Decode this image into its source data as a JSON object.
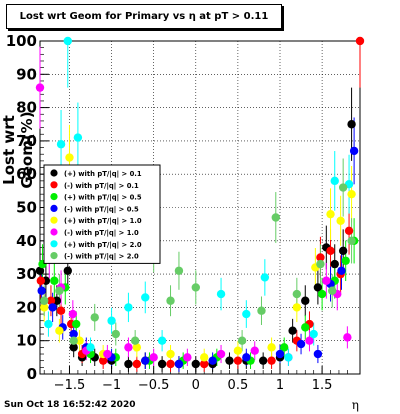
{
  "chart_data": {
    "type": "scatter",
    "title": "Lost wrt Geom for Primary vs   η at pT > 0.11",
    "xlabel": "η",
    "ylabel": "Lost wrt Geom(%)",
    "xlim": [
      -1.85,
      1.95
    ],
    "ylim": [
      0,
      100
    ],
    "x_ticks": [
      -1.5,
      -1,
      -0.5,
      0,
      0.5,
      1,
      1.5
    ],
    "x_tick_labels": [
      "−1.5",
      "−1",
      "−0.5",
      "0",
      "0.5",
      "1",
      "1.5"
    ],
    "y_ticks": [
      0,
      10,
      20,
      30,
      40,
      50,
      60,
      70,
      80,
      90,
      100
    ],
    "y_tick_labels": [
      "0",
      "10",
      "20",
      "30",
      "40",
      "50",
      "60",
      "70",
      "80",
      "90",
      "100"
    ],
    "grid": true,
    "legend_position": "middle-left",
    "series": [
      {
        "name": "(+) with pT/|q| > 0.1",
        "color": "#000000",
        "points": [
          [
            -1.85,
            31
          ],
          [
            -1.78,
            28
          ],
          [
            -1.65,
            22
          ],
          [
            -1.52,
            31
          ],
          [
            -1.45,
            8
          ],
          [
            -1.35,
            5
          ],
          [
            -1.2,
            5
          ],
          [
            -1.0,
            4
          ],
          [
            -0.8,
            3
          ],
          [
            -0.6,
            4
          ],
          [
            -0.4,
            3
          ],
          [
            -0.2,
            3
          ],
          [
            0.0,
            3
          ],
          [
            0.2,
            3
          ],
          [
            0.4,
            4
          ],
          [
            0.6,
            4
          ],
          [
            0.8,
            4
          ],
          [
            1.0,
            5
          ],
          [
            1.15,
            13
          ],
          [
            1.3,
            22
          ],
          [
            1.45,
            26
          ],
          [
            1.55,
            38
          ],
          [
            1.65,
            33
          ],
          [
            1.75,
            37
          ],
          [
            1.85,
            75
          ]
        ]
      },
      {
        "name": "(-) with pT/|q| > 0.1",
        "color": "#ff0000",
        "points": [
          [
            -1.84,
            28
          ],
          [
            -1.72,
            22
          ],
          [
            -1.6,
            19
          ],
          [
            -1.48,
            15
          ],
          [
            -1.35,
            6
          ],
          [
            -1.1,
            4
          ],
          [
            -0.7,
            3
          ],
          [
            -0.3,
            3
          ],
          [
            0.1,
            3
          ],
          [
            0.5,
            4
          ],
          [
            0.9,
            4
          ],
          [
            1.2,
            10
          ],
          [
            1.35,
            15
          ],
          [
            1.48,
            35
          ],
          [
            1.6,
            37
          ],
          [
            1.72,
            30
          ],
          [
            1.82,
            43
          ],
          [
            1.95,
            100
          ]
        ]
      },
      {
        "name": "(+) with pT/|q| > 0.5",
        "color": "#00ee00",
        "points": [
          [
            -1.82,
            33
          ],
          [
            -1.68,
            28
          ],
          [
            -1.55,
            26
          ],
          [
            -1.42,
            15
          ],
          [
            -1.25,
            6
          ],
          [
            -0.95,
            5
          ],
          [
            -0.55,
            4
          ],
          [
            -0.15,
            4
          ],
          [
            0.25,
            5
          ],
          [
            0.65,
            4
          ],
          [
            1.05,
            8
          ],
          [
            1.3,
            14
          ],
          [
            1.5,
            24
          ],
          [
            1.65,
            28
          ],
          [
            1.78,
            34
          ],
          [
            1.88,
            40
          ]
        ]
      },
      {
        "name": "(-) with pT/|q| > 0.5",
        "color": "#0000ff",
        "points": [
          [
            -1.83,
            25
          ],
          [
            -1.7,
            20
          ],
          [
            -1.58,
            14
          ],
          [
            -1.45,
            12
          ],
          [
            -1.3,
            8
          ],
          [
            -1.0,
            5
          ],
          [
            -0.6,
            4
          ],
          [
            -0.2,
            3
          ],
          [
            0.2,
            4
          ],
          [
            0.6,
            5
          ],
          [
            1.0,
            6
          ],
          [
            1.25,
            9
          ],
          [
            1.45,
            6
          ],
          [
            1.6,
            27
          ],
          [
            1.73,
            31
          ],
          [
            1.88,
            67
          ]
        ]
      },
      {
        "name": "(+) with pT/|q| > 1.0",
        "color": "#ffff00",
        "points": [
          [
            -1.8,
            20
          ],
          [
            -1.62,
            13
          ],
          [
            -1.5,
            65
          ],
          [
            -1.38,
            10
          ],
          [
            -1.1,
            6
          ],
          [
            -0.7,
            8
          ],
          [
            -0.3,
            6
          ],
          [
            0.1,
            5
          ],
          [
            0.5,
            7
          ],
          [
            0.9,
            8
          ],
          [
            1.2,
            20
          ],
          [
            1.42,
            32
          ],
          [
            1.6,
            48
          ],
          [
            1.72,
            46
          ],
          [
            1.85,
            54
          ]
        ]
      },
      {
        "name": "(-) with pT/|q| > 1.0",
        "color": "#ff00ff",
        "points": [
          [
            -1.85,
            86
          ],
          [
            -1.74,
            35
          ],
          [
            -1.6,
            26
          ],
          [
            -1.46,
            18
          ],
          [
            -1.3,
            7
          ],
          [
            -1.05,
            6
          ],
          [
            -0.8,
            8
          ],
          [
            -0.5,
            5
          ],
          [
            -0.1,
            5
          ],
          [
            0.3,
            6
          ],
          [
            0.7,
            7
          ],
          [
            1.1,
            5
          ],
          [
            1.35,
            10
          ],
          [
            1.55,
            28
          ],
          [
            1.68,
            24
          ],
          [
            1.8,
            11
          ]
        ]
      },
      {
        "name": "(+) with pT/|q| > 2.0",
        "color": "#00ffff",
        "points": [
          [
            -1.75,
            15
          ],
          [
            -1.6,
            69
          ],
          [
            -1.52,
            100
          ],
          [
            -1.4,
            71
          ],
          [
            -1.25,
            8
          ],
          [
            -1.0,
            16
          ],
          [
            -0.8,
            20
          ],
          [
            -0.6,
            23
          ],
          [
            -0.4,
            10
          ],
          [
            0.3,
            24
          ],
          [
            0.6,
            18
          ],
          [
            0.82,
            29
          ],
          [
            1.1,
            5
          ],
          [
            1.4,
            12
          ],
          [
            1.65,
            58
          ],
          [
            1.82,
            57
          ]
        ]
      },
      {
        "name": "(-) with pT/|q| > 2.0",
        "color": "#66cc66",
        "points": [
          [
            -1.8,
            22
          ],
          [
            -1.62,
            25
          ],
          [
            -1.45,
            10
          ],
          [
            -1.2,
            17
          ],
          [
            -0.95,
            12
          ],
          [
            -0.72,
            10
          ],
          [
            -0.5,
            37
          ],
          [
            -0.3,
            22
          ],
          [
            -0.2,
            31
          ],
          [
            0.0,
            26
          ],
          [
            0.55,
            10
          ],
          [
            0.78,
            19
          ],
          [
            0.95,
            47
          ],
          [
            1.2,
            24
          ],
          [
            1.48,
            33
          ],
          [
            1.62,
            25
          ],
          [
            1.75,
            56
          ],
          [
            1.85,
            40
          ]
        ]
      }
    ],
    "legend_entries": [
      "(+) with pT/|q| > 0.1",
      "(-) with pT/|q| > 0.1",
      "(+) with pT/|q| > 0.5",
      "(-) with pT/|q| > 0.5",
      "(+) with pT/|q| > 1.0",
      "(-) with pT/|q| > 1.0",
      "(+) with pT/|q| > 2.0",
      "(-) with pT/|q| > 2.0"
    ]
  },
  "datestamp": "Sun Oct 18 16:52:42 2020"
}
